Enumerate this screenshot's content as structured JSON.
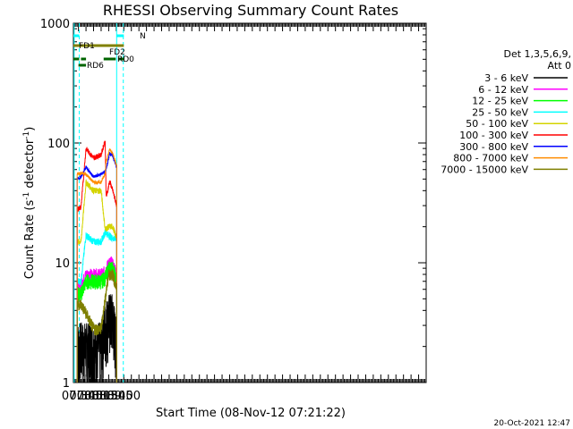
{
  "chart_data": {
    "type": "line",
    "title": "RHESSI Observing Summary Count Rates",
    "xlabel": "Start Time (08-Nov-12 07:21:22)",
    "ylabel_main": "Count Rate (s",
    "ylabel_sup1": "-1",
    "ylabel_mid": " detector",
    "ylabel_sup2": "-1",
    "ylabel_end": ")",
    "yscale": "log",
    "ylim": [
      1,
      1000
    ],
    "xlim_min": [
      440,
      1140
    ],
    "ytick_labels": [
      {
        "v": 1,
        "label": "1"
      },
      {
        "v": 10,
        "label": "10"
      },
      {
        "v": 100,
        "label": "100"
      },
      {
        "v": 1000,
        "label": "1000"
      }
    ],
    "xtick_labels": [
      {
        "m": 450,
        "label": "07:30"
      },
      {
        "m": 465,
        "label": "07:45"
      },
      {
        "m": 480,
        "label": "08:00"
      },
      {
        "m": 495,
        "label": "08:15"
      },
      {
        "m": 510,
        "label": "08:30"
      },
      {
        "m": 525,
        "label": "08:45"
      },
      {
        "m": 540,
        "label": "09:00"
      }
    ],
    "legend_header": [
      "Det 1,3,5,6,9,",
      "Att 0"
    ],
    "series": [
      {
        "name": "3 - 6 keV",
        "color": "#000000",
        "values": [
          [
            447.5,
            2
          ],
          [
            455,
            2
          ],
          [
            465,
            2
          ],
          [
            480,
            2
          ],
          [
            495,
            2
          ],
          [
            503,
            3
          ],
          [
            510,
            3.5
          ],
          [
            518,
            3.5
          ],
          [
            526,
            2
          ]
        ]
      },
      {
        "name": "6 - 12 keV",
        "color": "#ff00ff",
        "values": [
          [
            447.5,
            6.5
          ],
          [
            455,
            6.5
          ],
          [
            465,
            8
          ],
          [
            480,
            8
          ],
          [
            495,
            8
          ],
          [
            503,
            8.5
          ],
          [
            510,
            10
          ],
          [
            518,
            10
          ],
          [
            526,
            8
          ]
        ]
      },
      {
        "name": "12 - 25 keV",
        "color": "#00ff00",
        "values": [
          [
            447.5,
            5.5
          ],
          [
            455,
            5.5
          ],
          [
            465,
            7
          ],
          [
            480,
            7
          ],
          [
            495,
            7
          ],
          [
            503,
            7.5
          ],
          [
            510,
            9
          ],
          [
            518,
            9
          ],
          [
            526,
            7
          ]
        ]
      },
      {
        "name": "25 - 50 keV",
        "color": "#00ffff",
        "values": [
          [
            447.5,
            7
          ],
          [
            455,
            7
          ],
          [
            465,
            17
          ],
          [
            480,
            15
          ],
          [
            495,
            15
          ],
          [
            503,
            18
          ],
          [
            510,
            17
          ],
          [
            518,
            16
          ],
          [
            526,
            16
          ]
        ]
      },
      {
        "name": "50 - 100 keV",
        "color": "#d4d400",
        "values": [
          [
            447.5,
            15
          ],
          [
            455,
            15
          ],
          [
            465,
            47
          ],
          [
            480,
            40
          ],
          [
            495,
            40
          ],
          [
            503,
            19
          ],
          [
            510,
            20
          ],
          [
            518,
            20
          ],
          [
            526,
            16
          ]
        ]
      },
      {
        "name": "100 - 300 keV",
        "color": "#ff0000",
        "values": [
          [
            447.5,
            28
          ],
          [
            455,
            29
          ],
          [
            465,
            90
          ],
          [
            480,
            75
          ],
          [
            495,
            80
          ],
          [
            503,
            105
          ],
          [
            505,
            35
          ],
          [
            512,
            48
          ],
          [
            518,
            40
          ],
          [
            526,
            30
          ]
        ]
      },
      {
        "name": "300 - 800 keV",
        "color": "#0000ff",
        "values": [
          [
            447.5,
            50
          ],
          [
            455,
            52
          ],
          [
            465,
            63
          ],
          [
            480,
            52
          ],
          [
            495,
            55
          ],
          [
            503,
            58
          ],
          [
            505,
            60
          ],
          [
            512,
            82
          ],
          [
            518,
            78
          ],
          [
            526,
            62
          ]
        ]
      },
      {
        "name": "800 - 7000 keV",
        "color": "#ff8c00",
        "values": [
          [
            447.5,
            55
          ],
          [
            455,
            56
          ],
          [
            465,
            55
          ],
          [
            480,
            47
          ],
          [
            495,
            47
          ],
          [
            503,
            56
          ],
          [
            505,
            70
          ],
          [
            512,
            88
          ],
          [
            518,
            82
          ],
          [
            526,
            65
          ]
        ]
      },
      {
        "name": "7000 - 15000 keV",
        "color": "#7f7f00",
        "values": [
          [
            447.5,
            4.5
          ],
          [
            455,
            4.5
          ],
          [
            465,
            3.8
          ],
          [
            480,
            2.8
          ],
          [
            495,
            2.8
          ],
          [
            503,
            5
          ],
          [
            510,
            8
          ],
          [
            518,
            8
          ],
          [
            526,
            6
          ]
        ]
      }
    ],
    "status_bars": [
      {
        "label": "N",
        "color": "#00ffff",
        "segments": [
          [
            440,
            451.5
          ],
          [
            526,
            540
          ]
        ]
      },
      {
        "label": "FD1",
        "color": "#808000",
        "segments": [
          [
            440,
            540
          ]
        ]
      },
      {
        "label": "FD2",
        "color": "#808000",
        "segments": []
      },
      {
        "label": "RD0",
        "color": "#006400",
        "segments": [
          [
            440,
            451.5
          ],
          [
            455,
            465
          ],
          [
            500,
            524
          ],
          [
            529,
            540
          ]
        ]
      },
      {
        "label": "RD6",
        "color": "#006400",
        "segments": [
          [
            450,
            465
          ]
        ]
      }
    ],
    "footer_date": "20-Oct-2021 12:47"
  }
}
